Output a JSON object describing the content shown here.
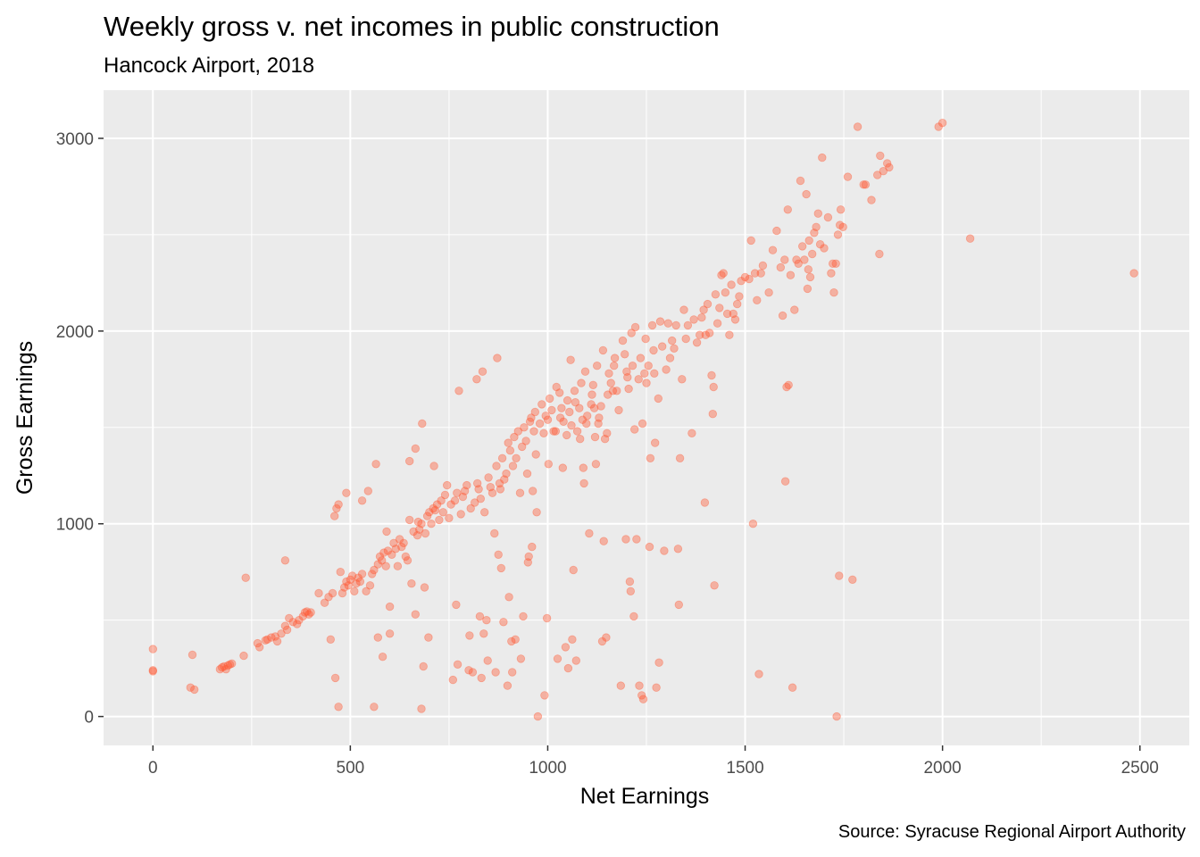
{
  "chart_data": {
    "type": "scatter",
    "title": "Weekly gross v. net incomes in public construction",
    "subtitle": "Hancock Airport, 2018",
    "caption": "Source: Syracuse Regional Airport Authority",
    "xlabel": "Net Earnings",
    "ylabel": "Gross Earnings",
    "xlim": [
      -125,
      2625
    ],
    "ylim": [
      -150,
      3250
    ],
    "x_ticks": [
      0,
      500,
      1000,
      1500,
      2000,
      2500
    ],
    "y_ticks": [
      0,
      1000,
      2000,
      3000
    ],
    "grid": true,
    "point_color": "#FF5733",
    "point_opacity": 0.4,
    "panel_background": "#EBEBEB",
    "points": [
      [
        0,
        350
      ],
      [
        0,
        240
      ],
      [
        0,
        235
      ],
      [
        100,
        320
      ],
      [
        95,
        150
      ],
      [
        105,
        140
      ],
      [
        170,
        245
      ],
      [
        175,
        255
      ],
      [
        180,
        260
      ],
      [
        185,
        245
      ],
      [
        190,
        265
      ],
      [
        195,
        270
      ],
      [
        200,
        275
      ],
      [
        230,
        315
      ],
      [
        235,
        720
      ],
      [
        265,
        380
      ],
      [
        270,
        360
      ],
      [
        285,
        395
      ],
      [
        290,
        400
      ],
      [
        300,
        410
      ],
      [
        310,
        415
      ],
      [
        315,
        390
      ],
      [
        325,
        430
      ],
      [
        335,
        470
      ],
      [
        335,
        810
      ],
      [
        340,
        450
      ],
      [
        345,
        510
      ],
      [
        355,
        490
      ],
      [
        365,
        480
      ],
      [
        370,
        500
      ],
      [
        380,
        520
      ],
      [
        385,
        540
      ],
      [
        390,
        545
      ],
      [
        395,
        530
      ],
      [
        400,
        540
      ],
      [
        420,
        640
      ],
      [
        435,
        590
      ],
      [
        445,
        620
      ],
      [
        450,
        400
      ],
      [
        455,
        640
      ],
      [
        460,
        1040
      ],
      [
        462,
        200
      ],
      [
        465,
        1080
      ],
      [
        470,
        1100
      ],
      [
        470,
        50
      ],
      [
        475,
        750
      ],
      [
        480,
        640
      ],
      [
        485,
        670
      ],
      [
        490,
        700
      ],
      [
        490,
        1160
      ],
      [
        495,
        680
      ],
      [
        500,
        710
      ],
      [
        505,
        730
      ],
      [
        510,
        650
      ],
      [
        515,
        690
      ],
      [
        520,
        720
      ],
      [
        525,
        700
      ],
      [
        530,
        1120
      ],
      [
        530,
        740
      ],
      [
        540,
        650
      ],
      [
        545,
        1170
      ],
      [
        550,
        680
      ],
      [
        555,
        740
      ],
      [
        560,
        760
      ],
      [
        560,
        50
      ],
      [
        565,
        1310
      ],
      [
        570,
        790
      ],
      [
        570,
        410
      ],
      [
        575,
        830
      ],
      [
        580,
        810
      ],
      [
        582,
        310
      ],
      [
        585,
        850
      ],
      [
        590,
        780
      ],
      [
        592,
        960
      ],
      [
        595,
        860
      ],
      [
        600,
        430
      ],
      [
        600,
        570
      ],
      [
        605,
        840
      ],
      [
        610,
        900
      ],
      [
        615,
        870
      ],
      [
        620,
        780
      ],
      [
        625,
        920
      ],
      [
        630,
        880
      ],
      [
        635,
        900
      ],
      [
        640,
        830
      ],
      [
        645,
        810
      ],
      [
        650,
        1020
      ],
      [
        650,
        1325
      ],
      [
        655,
        690
      ],
      [
        660,
        960
      ],
      [
        665,
        1390
      ],
      [
        665,
        530
      ],
      [
        670,
        940
      ],
      [
        672,
        1010
      ],
      [
        675,
        970
      ],
      [
        680,
        1000
      ],
      [
        680,
        40
      ],
      [
        682,
        1520
      ],
      [
        685,
        260
      ],
      [
        688,
        670
      ],
      [
        690,
        950
      ],
      [
        695,
        1040
      ],
      [
        698,
        410
      ],
      [
        700,
        1060
      ],
      [
        705,
        1000
      ],
      [
        710,
        1080
      ],
      [
        712,
        1300
      ],
      [
        715,
        1070
      ],
      [
        720,
        1100
      ],
      [
        725,
        1020
      ],
      [
        730,
        1120
      ],
      [
        735,
        1060
      ],
      [
        740,
        1150
      ],
      [
        745,
        1200
      ],
      [
        750,
        1030
      ],
      [
        755,
        1100
      ],
      [
        760,
        190
      ],
      [
        765,
        1120
      ],
      [
        768,
        580
      ],
      [
        770,
        1160
      ],
      [
        772,
        270
      ],
      [
        775,
        1690
      ],
      [
        780,
        1050
      ],
      [
        785,
        1140
      ],
      [
        790,
        1170
      ],
      [
        795,
        1200
      ],
      [
        800,
        240
      ],
      [
        802,
        420
      ],
      [
        805,
        1080
      ],
      [
        810,
        230
      ],
      [
        815,
        1110
      ],
      [
        820,
        1750
      ],
      [
        822,
        1210
      ],
      [
        825,
        1180
      ],
      [
        828,
        520
      ],
      [
        830,
        1130
      ],
      [
        832,
        200
      ],
      [
        835,
        1790
      ],
      [
        838,
        430
      ],
      [
        840,
        1060
      ],
      [
        845,
        500
      ],
      [
        848,
        290
      ],
      [
        850,
        1240
      ],
      [
        855,
        1190
      ],
      [
        860,
        1160
      ],
      [
        865,
        950
      ],
      [
        868,
        230
      ],
      [
        870,
        1300
      ],
      [
        872,
        1860
      ],
      [
        875,
        840
      ],
      [
        878,
        1210
      ],
      [
        880,
        1180
      ],
      [
        882,
        770
      ],
      [
        885,
        1340
      ],
      [
        888,
        490
      ],
      [
        890,
        1230
      ],
      [
        895,
        1260
      ],
      [
        898,
        160
      ],
      [
        900,
        1420
      ],
      [
        902,
        620
      ],
      [
        905,
        1380
      ],
      [
        908,
        390
      ],
      [
        910,
        230
      ],
      [
        912,
        1300
      ],
      [
        915,
        1450
      ],
      [
        918,
        400
      ],
      [
        920,
        1340
      ],
      [
        925,
        1480
      ],
      [
        930,
        1160
      ],
      [
        932,
        300
      ],
      [
        935,
        1400
      ],
      [
        938,
        520
      ],
      [
        940,
        1500
      ],
      [
        945,
        1430
      ],
      [
        948,
        1260
      ],
      [
        950,
        800
      ],
      [
        952,
        830
      ],
      [
        955,
        1530
      ],
      [
        958,
        1550
      ],
      [
        960,
        880
      ],
      [
        962,
        1170
      ],
      [
        965,
        1480
      ],
      [
        968,
        1580
      ],
      [
        970,
        1360
      ],
      [
        972,
        1060
      ],
      [
        975,
        0
      ],
      [
        980,
        1520
      ],
      [
        985,
        1620
      ],
      [
        990,
        1470
      ],
      [
        992,
        110
      ],
      [
        995,
        1560
      ],
      [
        998,
        510
      ],
      [
        1000,
        1540
      ],
      [
        1002,
        1310
      ],
      [
        1005,
        1650
      ],
      [
        1010,
        1590
      ],
      [
        1015,
        1480
      ],
      [
        1020,
        1480
      ],
      [
        1022,
        1710
      ],
      [
        1025,
        300
      ],
      [
        1030,
        1680
      ],
      [
        1032,
        1550
      ],
      [
        1035,
        1600
      ],
      [
        1038,
        1290
      ],
      [
        1040,
        1530
      ],
      [
        1045,
        360
      ],
      [
        1048,
        1460
      ],
      [
        1050,
        1640
      ],
      [
        1052,
        250
      ],
      [
        1055,
        1580
      ],
      [
        1058,
        1850
      ],
      [
        1060,
        1510
      ],
      [
        1062,
        400
      ],
      [
        1065,
        760
      ],
      [
        1068,
        1690
      ],
      [
        1070,
        1630
      ],
      [
        1072,
        290
      ],
      [
        1075,
        1480
      ],
      [
        1080,
        1600
      ],
      [
        1082,
        1440
      ],
      [
        1085,
        1730
      ],
      [
        1088,
        1540
      ],
      [
        1090,
        1290
      ],
      [
        1092,
        1210
      ],
      [
        1095,
        1790
      ],
      [
        1098,
        1520
      ],
      [
        1100,
        1560
      ],
      [
        1105,
        950
      ],
      [
        1110,
        1620
      ],
      [
        1112,
        1670
      ],
      [
        1115,
        1720
      ],
      [
        1118,
        1600
      ],
      [
        1120,
        1450
      ],
      [
        1122,
        1310
      ],
      [
        1125,
        1820
      ],
      [
        1128,
        1520
      ],
      [
        1130,
        1550
      ],
      [
        1135,
        1610
      ],
      [
        1138,
        390
      ],
      [
        1140,
        1900
      ],
      [
        1142,
        910
      ],
      [
        1145,
        1440
      ],
      [
        1148,
        410
      ],
      [
        1150,
        1470
      ],
      [
        1152,
        1670
      ],
      [
        1155,
        1780
      ],
      [
        1160,
        1730
      ],
      [
        1165,
        1690
      ],
      [
        1168,
        1820
      ],
      [
        1170,
        1860
      ],
      [
        1175,
        1690
      ],
      [
        1180,
        1590
      ],
      [
        1185,
        160
      ],
      [
        1190,
        1950
      ],
      [
        1195,
        1880
      ],
      [
        1198,
        920
      ],
      [
        1200,
        1790
      ],
      [
        1202,
        1760
      ],
      [
        1205,
        1700
      ],
      [
        1208,
        700
      ],
      [
        1210,
        650
      ],
      [
        1212,
        1990
      ],
      [
        1215,
        1820
      ],
      [
        1218,
        520
      ],
      [
        1220,
        1490
      ],
      [
        1222,
        2020
      ],
      [
        1225,
        920
      ],
      [
        1230,
        1750
      ],
      [
        1232,
        160
      ],
      [
        1235,
        1860
      ],
      [
        1238,
        110
      ],
      [
        1240,
        1520
      ],
      [
        1242,
        90
      ],
      [
        1245,
        1780
      ],
      [
        1248,
        1960
      ],
      [
        1250,
        1730
      ],
      [
        1255,
        1820
      ],
      [
        1258,
        880
      ],
      [
        1260,
        1340
      ],
      [
        1265,
        2030
      ],
      [
        1268,
        1900
      ],
      [
        1270,
        1780
      ],
      [
        1272,
        1420
      ],
      [
        1275,
        150
      ],
      [
        1280,
        1650
      ],
      [
        1282,
        280
      ],
      [
        1285,
        2050
      ],
      [
        1290,
        1920
      ],
      [
        1295,
        860
      ],
      [
        1300,
        1800
      ],
      [
        1305,
        2040
      ],
      [
        1310,
        1860
      ],
      [
        1315,
        1950
      ],
      [
        1320,
        1910
      ],
      [
        1325,
        2030
      ],
      [
        1330,
        870
      ],
      [
        1332,
        580
      ],
      [
        1335,
        1340
      ],
      [
        1340,
        1750
      ],
      [
        1345,
        2110
      ],
      [
        1350,
        1960
      ],
      [
        1355,
        2030
      ],
      [
        1365,
        1470
      ],
      [
        1370,
        2060
      ],
      [
        1378,
        1940
      ],
      [
        1385,
        1980
      ],
      [
        1390,
        2070
      ],
      [
        1395,
        2110
      ],
      [
        1398,
        1110
      ],
      [
        1400,
        1980
      ],
      [
        1405,
        2140
      ],
      [
        1410,
        1990
      ],
      [
        1415,
        1770
      ],
      [
        1418,
        1570
      ],
      [
        1420,
        1710
      ],
      [
        1422,
        680
      ],
      [
        1425,
        2190
      ],
      [
        1430,
        2040
      ],
      [
        1435,
        2120
      ],
      [
        1440,
        2290
      ],
      [
        1445,
        2300
      ],
      [
        1450,
        2200
      ],
      [
        1455,
        2090
      ],
      [
        1460,
        1980
      ],
      [
        1465,
        2240
      ],
      [
        1470,
        2090
      ],
      [
        1475,
        2060
      ],
      [
        1480,
        2140
      ],
      [
        1485,
        2180
      ],
      [
        1490,
        2260
      ],
      [
        1500,
        2280
      ],
      [
        1510,
        2270
      ],
      [
        1515,
        2470
      ],
      [
        1520,
        1000
      ],
      [
        1525,
        2300
      ],
      [
        1530,
        2160
      ],
      [
        1535,
        220
      ],
      [
        1540,
        2300
      ],
      [
        1545,
        2340
      ],
      [
        1560,
        2200
      ],
      [
        1570,
        2420
      ],
      [
        1580,
        2520
      ],
      [
        1590,
        2330
      ],
      [
        1595,
        2080
      ],
      [
        1600,
        2370
      ],
      [
        1602,
        1220
      ],
      [
        1605,
        1710
      ],
      [
        1608,
        2630
      ],
      [
        1610,
        1720
      ],
      [
        1615,
        2290
      ],
      [
        1620,
        150
      ],
      [
        1625,
        2110
      ],
      [
        1630,
        2370
      ],
      [
        1635,
        2350
      ],
      [
        1640,
        2780
      ],
      [
        1645,
        2440
      ],
      [
        1650,
        2370
      ],
      [
        1655,
        2710
      ],
      [
        1658,
        2220
      ],
      [
        1660,
        2320
      ],
      [
        1662,
        2470
      ],
      [
        1665,
        2280
      ],
      [
        1670,
        2400
      ],
      [
        1675,
        2510
      ],
      [
        1680,
        2540
      ],
      [
        1685,
        2610
      ],
      [
        1690,
        2450
      ],
      [
        1695,
        2900
      ],
      [
        1700,
        2430
      ],
      [
        1710,
        2590
      ],
      [
        1718,
        2300
      ],
      [
        1722,
        2350
      ],
      [
        1725,
        2200
      ],
      [
        1730,
        2350
      ],
      [
        1732,
        0
      ],
      [
        1735,
        2500
      ],
      [
        1738,
        730
      ],
      [
        1740,
        2550
      ],
      [
        1742,
        2630
      ],
      [
        1748,
        2540
      ],
      [
        1760,
        2800
      ],
      [
        1772,
        710
      ],
      [
        1785,
        3060
      ],
      [
        1800,
        2760
      ],
      [
        1805,
        2760
      ],
      [
        1820,
        2680
      ],
      [
        1835,
        2810
      ],
      [
        1840,
        2400
      ],
      [
        1842,
        2910
      ],
      [
        1850,
        2830
      ],
      [
        1860,
        2870
      ],
      [
        1865,
        2850
      ],
      [
        1990,
        3060
      ],
      [
        2000,
        3080
      ],
      [
        2070,
        2480
      ],
      [
        2485,
        2300
      ]
    ]
  }
}
